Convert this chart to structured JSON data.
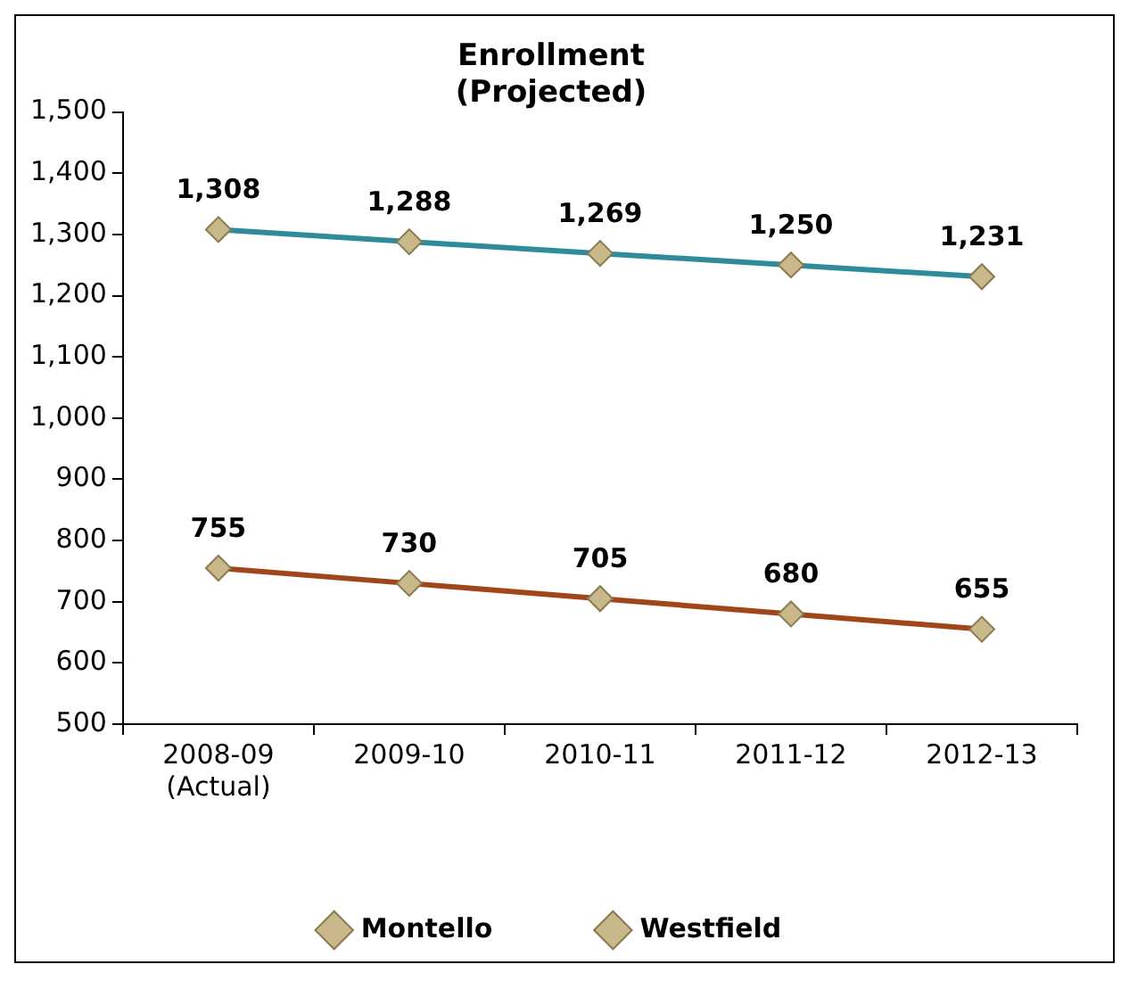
{
  "chart_data": {
    "type": "line",
    "title": "Enrollment\n(Projected)",
    "categories": [
      "2008-09\n(Actual)",
      "2009-10",
      "2010-11",
      "2011-12",
      "2012-13"
    ],
    "series": [
      {
        "name": "Montello",
        "color": "#a0461a",
        "values": [
          755,
          730,
          705,
          680,
          655
        ],
        "value_labels": [
          "755",
          "730",
          "705",
          "680",
          "655"
        ]
      },
      {
        "name": "Westfield",
        "color": "#2e8b9a",
        "values": [
          1308,
          1288,
          1269,
          1250,
          1231
        ],
        "value_labels": [
          "1,308",
          "1,288",
          "1,269",
          "1,250",
          "1,231"
        ]
      }
    ],
    "ylim": [
      500,
      1500
    ],
    "yticks": [
      500,
      600,
      700,
      800,
      900,
      {
        "value": 1000,
        "label": "1,000"
      },
      {
        "value": 1100,
        "label": "1,100"
      },
      {
        "value": 1200,
        "label": "1,200"
      },
      {
        "value": 1300,
        "label": "1,300"
      },
      {
        "value": 1400,
        "label": "1,400"
      },
      {
        "value": 1500,
        "label": "1,500"
      }
    ],
    "grid": false,
    "legend": "bottom",
    "marker": "diamond",
    "line_style": "solid"
  }
}
